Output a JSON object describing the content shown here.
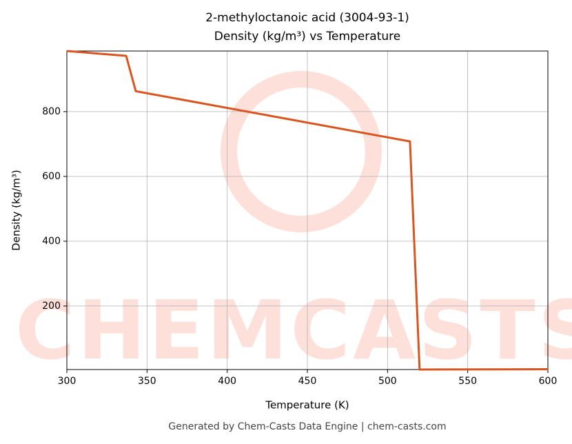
{
  "chart_data": {
    "type": "line",
    "title": [
      "2-methyloctanoic acid (3004-93-1)",
      "Density (kg/m³) vs Temperature"
    ],
    "xlabel": "Temperature (K)",
    "ylabel": "Density (kg/m³)",
    "watermark": "CHEMCASTS",
    "footer": "Generated by Chem-Casts Data Engine | chem-casts.com",
    "x": [
      300,
      337,
      343,
      514,
      520,
      600
    ],
    "series": [
      {
        "name": "Density",
        "color": "#d9541e",
        "values": [
          987,
          972,
          863,
          708,
          4,
          5
        ]
      }
    ],
    "xlim": [
      300,
      600
    ],
    "xticks": [
      300,
      350,
      400,
      450,
      500,
      550,
      600
    ],
    "ylim": [
      4,
      987
    ],
    "yticks": [
      200,
      400,
      600,
      800
    ],
    "grid": true
  }
}
